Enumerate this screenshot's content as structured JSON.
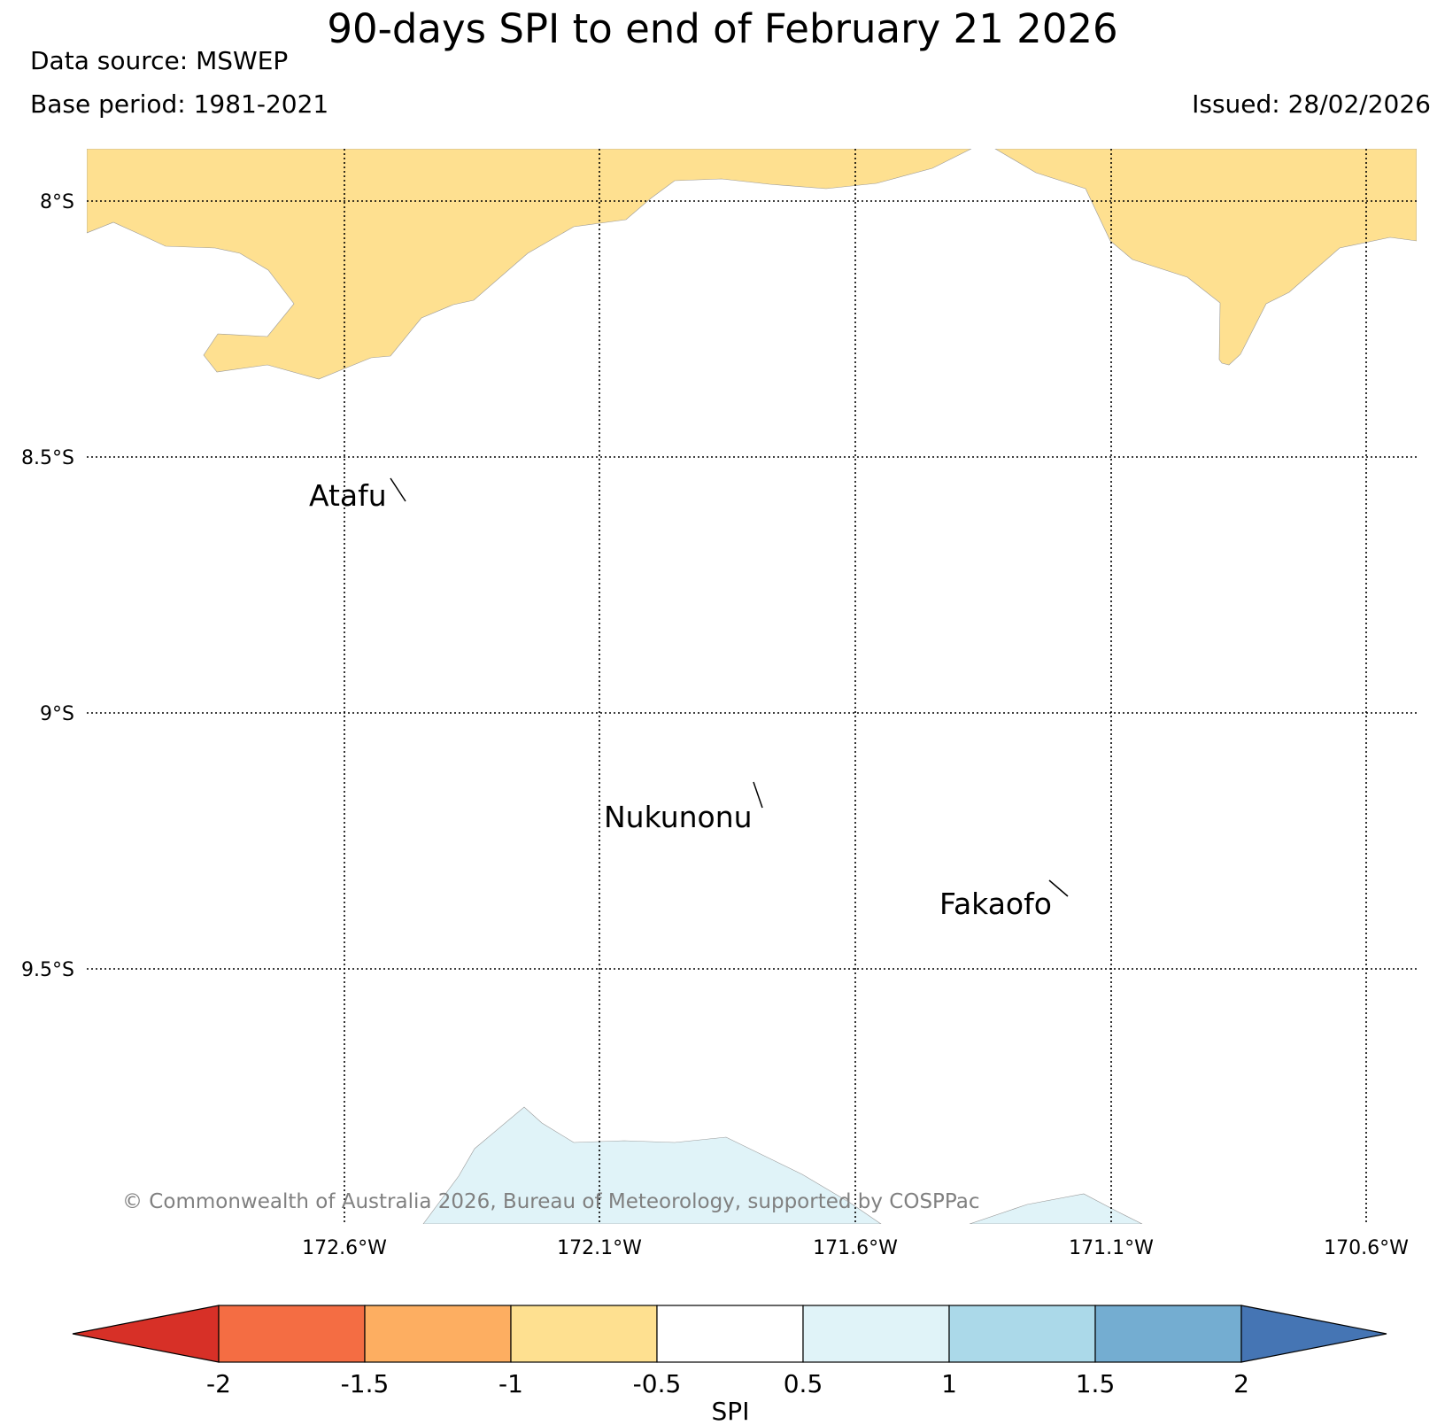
{
  "header": {
    "title": "90-days SPI to end of February 21 2026",
    "data_source": "Data source: MSWEP",
    "base_period": "Base period: 1981-2021",
    "issued": "Issued: 28/02/2026"
  },
  "map": {
    "lat_labels": [
      "8°S",
      "8.5°S",
      "9°S",
      "9.5°S"
    ],
    "lon_labels": [
      "172.6°W",
      "172.1°W",
      "171.6°W",
      "171.1°W",
      "170.6°W"
    ],
    "places": [
      {
        "name": "Atafu"
      },
      {
        "name": "Nukunonu"
      },
      {
        "name": "Fakaofo"
      }
    ],
    "copyright": "© Commonwealth of Australia 2026, Bureau of Meteorology, supported by COSPPac",
    "region_colors": {
      "dry_band": "#fee090",
      "wet_band": "#e0f3f8"
    }
  },
  "colorbar": {
    "label": "SPI",
    "ticks": [
      "-2",
      "-1.5",
      "-1",
      "-0.5",
      "0.5",
      "1",
      "1.5",
      "2"
    ],
    "colors": [
      "#d73027",
      "#f46d43",
      "#fdae61",
      "#fee090",
      "#ffffff",
      "#e0f3f8",
      "#abd9e9",
      "#74add1",
      "#4575b4"
    ]
  }
}
